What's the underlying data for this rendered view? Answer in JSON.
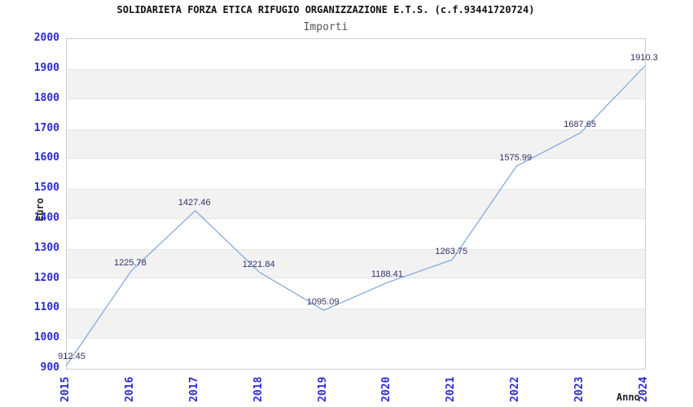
{
  "chart_data": {
    "type": "line",
    "title": "SOLIDARIETA FORZA ETICA RIFUGIO ORGANIZZAZIONE E.T.S. (c.f.93441720724)",
    "subtitle": "Importi",
    "xlabel": "Anno",
    "ylabel": "Euro",
    "categories": [
      "2015",
      "2016",
      "2017",
      "2018",
      "2019",
      "2020",
      "2021",
      "2022",
      "2023",
      "2024"
    ],
    "values": [
      912.45,
      1225.78,
      1427.46,
      1221.84,
      1095.09,
      1188.41,
      1263.75,
      1575.99,
      1687.65,
      1910.3
    ],
    "point_labels": [
      "912.45",
      "1225.78",
      "1427.46",
      "1221.84",
      "1095.09",
      "1188.41",
      "1263.75",
      "1575.99",
      "1687.65",
      "1910.3"
    ],
    "ylim": [
      900,
      2000
    ],
    "y_ticks": [
      2000,
      1900,
      1800,
      1700,
      1600,
      1500,
      1400,
      1300,
      1200,
      1100,
      1000,
      900
    ],
    "grid": "alternating horizontal gray bands between every other pair of y gridlines",
    "legend": "none",
    "colors": {
      "line": "#7aa5dc",
      "tick_label": "#2b2bd0",
      "point_label": "#333366",
      "band": "#f2f2f2",
      "band_edge": "#e7e7e7",
      "plot_border": "#cccccc",
      "title": "#111111",
      "subtitle": "#555555",
      "axis_title": "#222222",
      "background": "#ffffff"
    }
  }
}
